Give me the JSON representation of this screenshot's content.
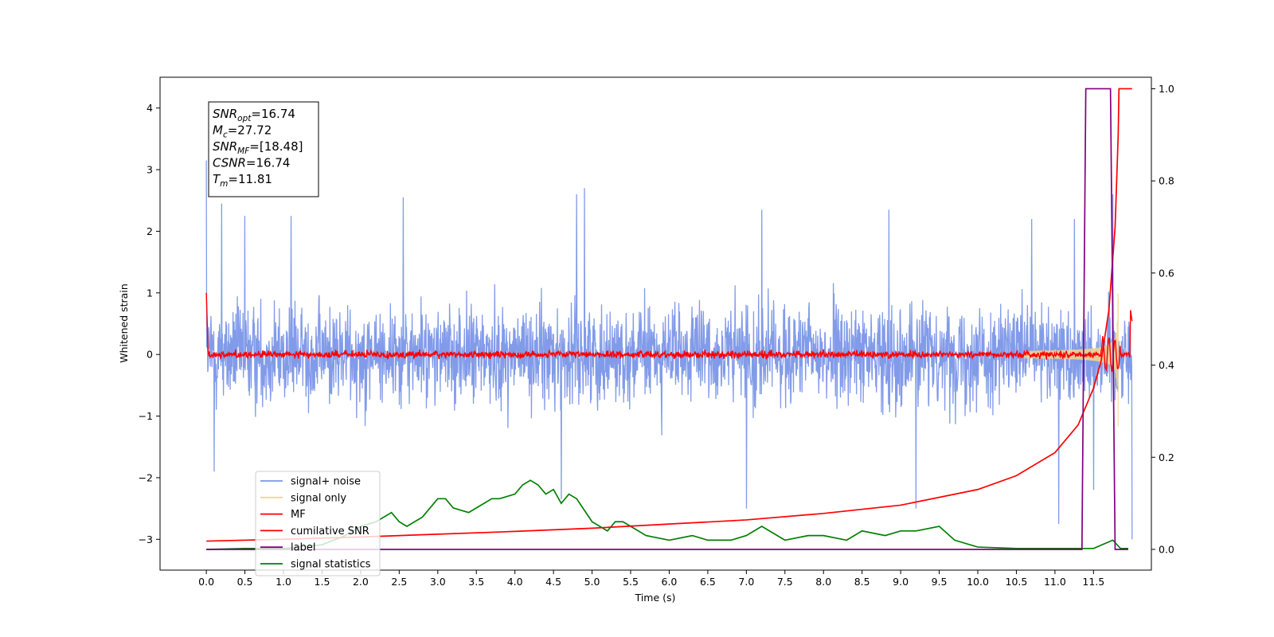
{
  "chart_data": {
    "type": "line",
    "xlabel": "Time (s)",
    "ylabel": "Whitened strain",
    "xlim": [
      -0.6,
      12.25
    ],
    "ylim": [
      -3.5,
      4.5
    ],
    "y2lim": [
      -0.045,
      1.025
    ],
    "x_ticks": [
      0.0,
      0.5,
      1.0,
      1.5,
      2.0,
      2.5,
      3.0,
      3.5,
      4.0,
      4.5,
      5.0,
      5.5,
      6.0,
      6.5,
      7.0,
      7.5,
      8.0,
      8.5,
      9.0,
      9.5,
      10.0,
      10.5,
      11.0,
      11.5
    ],
    "x_tick_labels": [
      "0.0",
      "0.5",
      "1.0",
      "1.5",
      "2.0",
      "2.5",
      "3.0",
      "3.5",
      "4.0",
      "4.5",
      "5.0",
      "5.5",
      "6.0",
      "6.5",
      "7.0",
      "7.5",
      "8.0",
      "8.5",
      "9.0",
      "9.5",
      "10.0",
      "10.5",
      "11.0",
      "11.5"
    ],
    "y_ticks": [
      -3,
      -2,
      -1,
      0,
      1,
      2,
      3,
      4
    ],
    "y_tick_labels": [
      "−3",
      "−2",
      "−1",
      "0",
      "1",
      "2",
      "3",
      "4"
    ],
    "y2_ticks": [
      0.0,
      0.2,
      0.4,
      0.6,
      0.8,
      1.0
    ],
    "y2_tick_labels": [
      "0.0",
      "0.2",
      "0.4",
      "0.6",
      "0.8",
      "1.0"
    ],
    "annotation": [
      {
        "main": "SNR",
        "sub": "opt",
        "rest": "=16.74"
      },
      {
        "main": "M",
        "sub": "c",
        "rest": "=27.72"
      },
      {
        "main": "SNR",
        "sub": "MF",
        "rest": "=[18.48]"
      },
      {
        "main": "CSNR",
        "sub": "",
        "rest": "=16.74"
      },
      {
        "main": "T",
        "sub": "m",
        "rest": "=11.81"
      }
    ],
    "legend": {
      "placement": "lower-left",
      "entries": [
        {
          "label": "signal+ noise",
          "color": "#7b96e8"
        },
        {
          "label": "signal only",
          "color": "#f5d58c"
        },
        {
          "label": "MF",
          "color": "#ff0000"
        },
        {
          "label": "cumilative SNR",
          "color": "#ff0000"
        },
        {
          "label": "label",
          "color": "#800080"
        },
        {
          "label": "signal statistics",
          "color": "#008000"
        }
      ]
    },
    "series": [
      {
        "name": "signal+ noise",
        "axis": "left",
        "color": "#7b96e8",
        "description": "whitened noise, roughly ±1.5 with peaks near ±2.5, from 0 to 12 s",
        "x_range": [
          0,
          12
        ],
        "peaks": [
          {
            "x": 0.0,
            "y": 3.15
          },
          {
            "x": 0.2,
            "y": 2.45
          },
          {
            "x": 0.5,
            "y": 2.25
          },
          {
            "x": 1.1,
            "y": 2.25
          },
          {
            "x": 2.55,
            "y": 2.55
          },
          {
            "x": 4.9,
            "y": 2.7
          },
          {
            "x": 4.8,
            "y": 2.6
          },
          {
            "x": 7.2,
            "y": 2.35
          },
          {
            "x": 8.85,
            "y": 2.35
          },
          {
            "x": 10.7,
            "y": 2.2
          },
          {
            "x": 11.25,
            "y": 2.2
          },
          {
            "x": 11.75,
            "y": 2.6
          },
          {
            "x": 0.1,
            "y": -1.9
          },
          {
            "x": 4.6,
            "y": -2.35
          },
          {
            "x": 7.0,
            "y": -2.5
          },
          {
            "x": 9.2,
            "y": -2.5
          },
          {
            "x": 11.05,
            "y": -2.75
          },
          {
            "x": 11.5,
            "y": -2.2
          },
          {
            "x": 12.0,
            "y": -3.0
          }
        ]
      },
      {
        "name": "signal only",
        "axis": "left",
        "color": "#f5d58c",
        "description": "chirp growing from 10.6 s to merger near 11.8 s",
        "chirp_start": 10.6,
        "chirp_end": 11.82,
        "peak_amplitude": 2.3
      },
      {
        "name": "MF",
        "axis": "left",
        "color": "#ff0000",
        "description": "matched filter output near 0 with small noise, start 1.0, spike near 11.8 s",
        "start_value": 1.0,
        "noise_amplitude": 0.08,
        "end_x": 12.0,
        "end_value": 0.9
      },
      {
        "name": "cumilative SNR",
        "axis": "right",
        "color": "#ff0000",
        "x": [
          0.0,
          1.0,
          2.0,
          3.0,
          4.0,
          5.0,
          6.0,
          7.0,
          8.0,
          9.0,
          10.0,
          10.5,
          11.0,
          11.3,
          11.5,
          11.6,
          11.7,
          11.78,
          11.82,
          11.83,
          11.84,
          12.0
        ],
        "y": [
          0.018,
          0.022,
          0.027,
          0.033,
          0.039,
          0.046,
          0.055,
          0.064,
          0.078,
          0.096,
          0.13,
          0.16,
          0.21,
          0.27,
          0.35,
          0.41,
          0.52,
          0.7,
          0.9,
          1.0,
          1.0,
          1.0
        ]
      },
      {
        "name": "label",
        "axis": "right",
        "color": "#800080",
        "x": [
          0.0,
          11.35,
          11.4,
          11.72,
          11.78,
          11.84,
          11.95
        ],
        "y": [
          0.0,
          0.0,
          1.0,
          1.0,
          0.0,
          0.0,
          0.0
        ]
      },
      {
        "name": "signal statistics",
        "axis": "right",
        "color": "#008000",
        "x": [
          0.0,
          0.5,
          1.0,
          1.5,
          1.8,
          2.0,
          2.2,
          2.4,
          2.5,
          2.6,
          2.8,
          3.0,
          3.1,
          3.2,
          3.4,
          3.5,
          3.6,
          3.7,
          3.8,
          4.0,
          4.1,
          4.2,
          4.3,
          4.4,
          4.5,
          4.6,
          4.7,
          4.8,
          5.0,
          5.2,
          5.3,
          5.4,
          5.5,
          5.7,
          6.0,
          6.3,
          6.5,
          6.8,
          7.0,
          7.2,
          7.5,
          7.8,
          8.0,
          8.3,
          8.5,
          8.8,
          9.0,
          9.2,
          9.5,
          9.7,
          10.0,
          10.5,
          11.0,
          11.5,
          11.75,
          11.85,
          11.95
        ],
        "y": [
          0.0,
          0.002,
          0.002,
          0.01,
          0.03,
          0.05,
          0.06,
          0.08,
          0.06,
          0.05,
          0.07,
          0.11,
          0.11,
          0.09,
          0.08,
          0.09,
          0.1,
          0.11,
          0.11,
          0.12,
          0.14,
          0.15,
          0.14,
          0.12,
          0.13,
          0.1,
          0.12,
          0.11,
          0.06,
          0.04,
          0.06,
          0.06,
          0.05,
          0.03,
          0.02,
          0.03,
          0.02,
          0.02,
          0.03,
          0.05,
          0.02,
          0.03,
          0.03,
          0.02,
          0.04,
          0.03,
          0.04,
          0.04,
          0.05,
          0.02,
          0.005,
          0.002,
          0.002,
          0.002,
          0.02,
          0.002,
          0.002
        ]
      }
    ]
  }
}
